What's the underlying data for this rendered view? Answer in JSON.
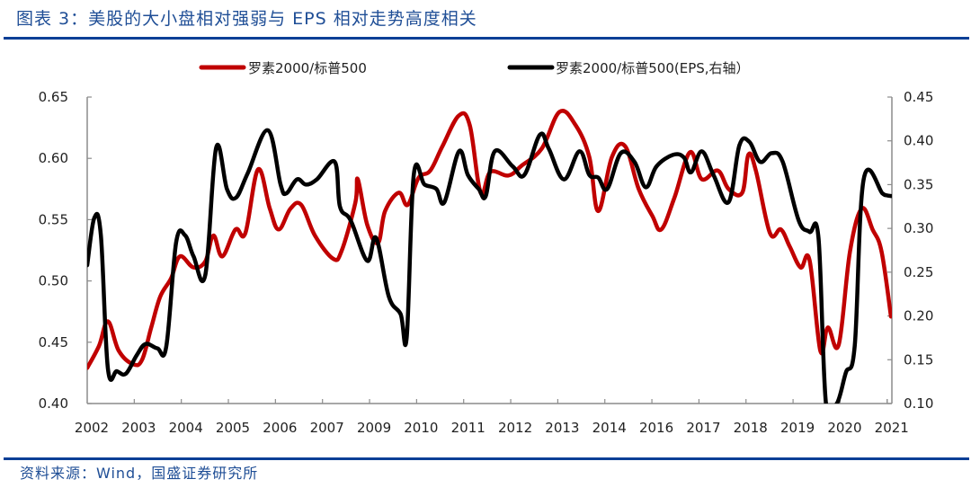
{
  "header": {
    "title": "图表 3：美股的大小盘相对强弱与 EPS 相对走势高度相关"
  },
  "footer": {
    "source": "资料来源：Wind，国盛证券研究所"
  },
  "chart_data": {
    "type": "line",
    "title": "美股的大小盘相对强弱与 EPS 相对走势高度相关",
    "xlabel": "",
    "x_tick_labels": [
      "2002",
      "2003",
      "2004",
      "2005",
      "2006",
      "2007",
      "2009",
      "2010",
      "2011",
      "2012",
      "2013",
      "2014",
      "2016",
      "2017",
      "2018",
      "2019",
      "2020",
      "2021"
    ],
    "x_range": [
      0,
      17.1
    ],
    "y_left": {
      "label": "",
      "ylim": [
        0.4,
        0.65
      ],
      "ticks": [
        "0.40",
        "0.45",
        "0.50",
        "0.55",
        "0.60",
        "0.65"
      ]
    },
    "y_right": {
      "label": "",
      "ylim": [
        0.1,
        0.45
      ],
      "ticks": [
        "0.10",
        "0.15",
        "0.20",
        "0.25",
        "0.30",
        "0.35",
        "0.40",
        "0.45"
      ]
    },
    "legend_position": "top-center",
    "grid": false,
    "series": [
      {
        "name": "罗素2000/标普500",
        "axis": "left",
        "color": "#c00000",
        "x": [
          0,
          0.25,
          0.44,
          0.67,
          0.98,
          1.17,
          1.36,
          1.55,
          1.78,
          1.97,
          2.26,
          2.51,
          2.68,
          2.87,
          3.15,
          3.36,
          3.63,
          3.88,
          4.07,
          4.32,
          4.55,
          4.84,
          5.23,
          5.41,
          5.7,
          5.75,
          5.95,
          6.18,
          6.33,
          6.62,
          6.81,
          7.04,
          7.29,
          7.55,
          7.9,
          8.13,
          8.36,
          8.57,
          8.95,
          9.23,
          9.66,
          10.04,
          10.38,
          10.67,
          10.86,
          11.15,
          11.43,
          11.72,
          12.01,
          12.2,
          12.48,
          12.81,
          13.06,
          13.4,
          13.63,
          13.92,
          14.05,
          14.21,
          14.51,
          14.74,
          14.93,
          15.16,
          15.35,
          15.58,
          15.74,
          15.97,
          16.21,
          16.46,
          16.69,
          16.88,
          17.08
        ],
        "values": [
          0.429,
          0.447,
          0.467,
          0.443,
          0.432,
          0.436,
          0.462,
          0.487,
          0.502,
          0.52,
          0.511,
          0.516,
          0.537,
          0.52,
          0.542,
          0.539,
          0.591,
          0.559,
          0.542,
          0.559,
          0.562,
          0.537,
          0.518,
          0.525,
          0.564,
          0.583,
          0.546,
          0.531,
          0.557,
          0.572,
          0.562,
          0.584,
          0.59,
          0.61,
          0.635,
          0.627,
          0.572,
          0.589,
          0.586,
          0.594,
          0.608,
          0.638,
          0.627,
          0.601,
          0.557,
          0.601,
          0.61,
          0.575,
          0.553,
          0.542,
          0.568,
          0.605,
          0.583,
          0.59,
          0.575,
          0.572,
          0.603,
          0.59,
          0.539,
          0.542,
          0.528,
          0.511,
          0.517,
          0.443,
          0.462,
          0.448,
          0.524,
          0.559,
          0.542,
          0.524,
          0.471
        ]
      },
      {
        "name": "罗素2000/标普500(EPS,右轴）",
        "axis": "right",
        "color": "#000000",
        "x": [
          0,
          0.15,
          0.29,
          0.44,
          0.63,
          0.82,
          1.05,
          1.24,
          1.49,
          1.68,
          1.89,
          2.08,
          2.26,
          2.51,
          2.74,
          2.97,
          3.16,
          3.41,
          3.84,
          4.11,
          4.23,
          4.46,
          4.65,
          4.88,
          5.26,
          5.37,
          5.6,
          5.95,
          6.14,
          6.41,
          6.66,
          6.79,
          6.94,
          7.17,
          7.42,
          7.59,
          7.9,
          8.09,
          8.32,
          8.47,
          8.66,
          9.04,
          9.29,
          9.62,
          9.81,
          10.13,
          10.46,
          10.67,
          10.86,
          11.05,
          11.34,
          11.63,
          11.87,
          12.1,
          12.45,
          12.68,
          12.83,
          13.06,
          13.31,
          13.63,
          13.86,
          14.07,
          14.3,
          14.55,
          14.78,
          15.12,
          15.35,
          15.54,
          15.7,
          15.93,
          16.12,
          16.31,
          16.5,
          16.9,
          16.97,
          17.2,
          17.08
        ],
        "values": [
          0.258,
          0.312,
          0.292,
          0.14,
          0.137,
          0.134,
          0.155,
          0.168,
          0.163,
          0.165,
          0.284,
          0.292,
          0.268,
          0.247,
          0.392,
          0.345,
          0.335,
          0.363,
          0.412,
          0.35,
          0.34,
          0.356,
          0.35,
          0.356,
          0.376,
          0.325,
          0.309,
          0.263,
          0.289,
          0.222,
          0.202,
          0.176,
          0.361,
          0.35,
          0.345,
          0.33,
          0.388,
          0.361,
          0.345,
          0.337,
          0.388,
          0.371,
          0.361,
          0.407,
          0.391,
          0.356,
          0.388,
          0.361,
          0.358,
          0.345,
          0.386,
          0.376,
          0.347,
          0.371,
          0.384,
          0.381,
          0.364,
          0.388,
          0.361,
          0.33,
          0.395,
          0.399,
          0.376,
          0.386,
          0.376,
          0.309,
          0.296,
          0.289,
          0.1,
          0.1,
          0.135,
          0.166,
          0.356,
          0.34,
          0.338,
          0.337,
          0.337
        ]
      }
    ]
  }
}
